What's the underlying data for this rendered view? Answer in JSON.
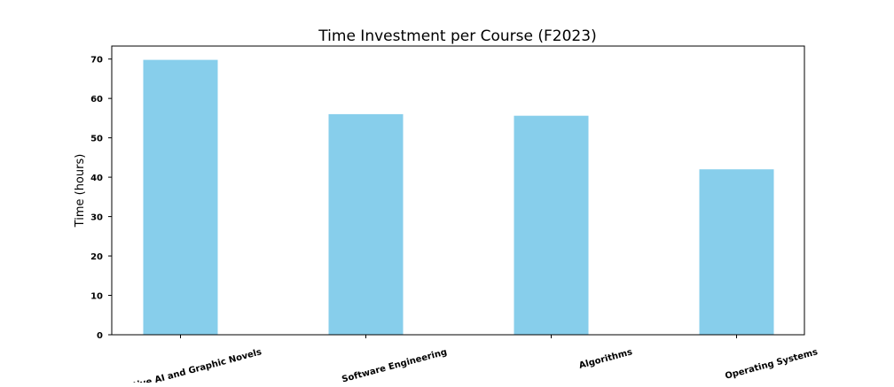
{
  "chart_data": {
    "type": "bar",
    "title": "Time Investment per Course (F2023)",
    "xlabel": "",
    "ylabel": "Time (hours)",
    "categories": [
      "Generative AI and Graphic Novels",
      "Software Engineering",
      "Algorithms",
      "Operating Systems"
    ],
    "values": [
      69.8,
      56.0,
      55.6,
      42.0
    ],
    "ylim": [
      0,
      73.3
    ],
    "yticks": [
      0,
      10,
      20,
      30,
      40,
      50,
      60,
      70
    ],
    "bar_color": "#87ceeb",
    "grid": false,
    "legend": "none"
  }
}
